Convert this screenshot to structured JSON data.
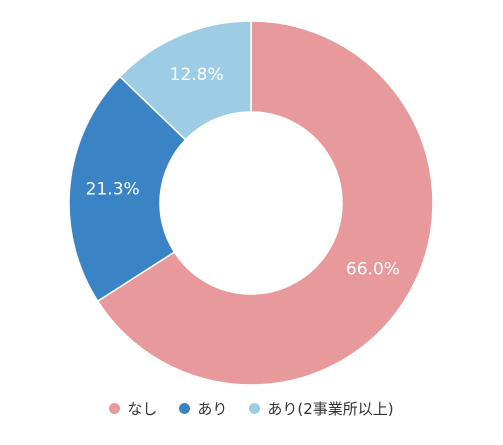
{
  "chart_data": {
    "type": "pie",
    "style": "donut",
    "slices": [
      {
        "label": "なし",
        "value": 66.0,
        "display": "66.0%",
        "color": "#e8999b"
      },
      {
        "label": "あり",
        "value": 21.3,
        "display": "21.3%",
        "color": "#3a84c6"
      },
      {
        "label": "あり(2事業所以上)",
        "value": 12.8,
        "display": "12.8%",
        "color": "#9dcde4"
      }
    ],
    "start_angle_deg": 0,
    "direction": "clockwise",
    "legend_position": "bottom"
  }
}
